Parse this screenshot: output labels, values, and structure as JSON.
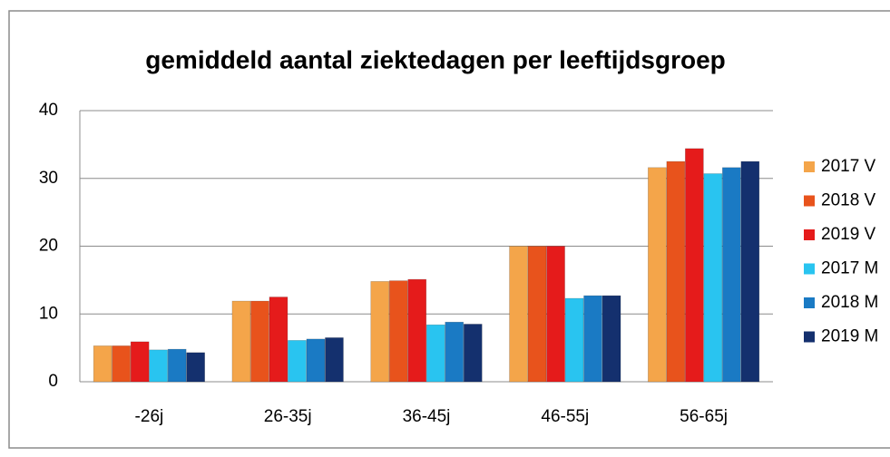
{
  "chart_data": {
    "type": "bar",
    "title": "gemiddeld aantal ziektedagen per leeftijdsgroep",
    "categories": [
      "-26j",
      "26-35j",
      "36-45j",
      "46-55j",
      "56-65j"
    ],
    "series": [
      {
        "name": "2017 V",
        "color": "#f4a54a",
        "values": [
          5.3,
          11.9,
          14.8,
          20,
          31.6
        ]
      },
      {
        "name": "2018 V",
        "color": "#e8531c",
        "values": [
          5.3,
          11.9,
          14.9,
          20,
          32.5
        ]
      },
      {
        "name": "2019 V",
        "color": "#e51b1b",
        "values": [
          5.9,
          12.5,
          15.1,
          20,
          34.4
        ]
      },
      {
        "name": "2017 M",
        "color": "#29c4f0",
        "values": [
          4.7,
          6.1,
          8.4,
          12.3,
          30.7
        ]
      },
      {
        "name": "2018 M",
        "color": "#1a7ac4",
        "values": [
          4.8,
          6.3,
          8.8,
          12.7,
          31.6
        ]
      },
      {
        "name": "2019 M",
        "color": "#14306e",
        "values": [
          4.3,
          6.5,
          8.5,
          12.7,
          32.5
        ]
      }
    ],
    "ylim": [
      0,
      40
    ],
    "yticks": [
      0,
      10,
      20,
      30,
      40
    ],
    "grid": true,
    "legend": "right"
  }
}
